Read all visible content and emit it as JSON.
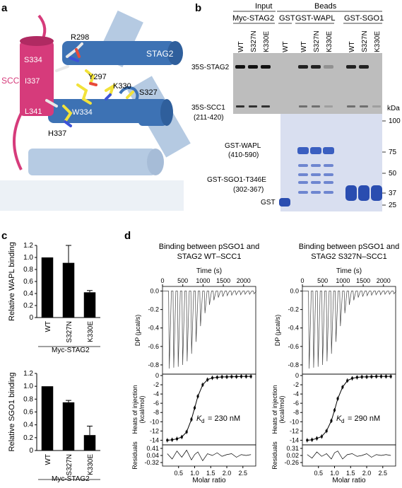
{
  "panels": {
    "a": {
      "letter": "a",
      "labels": {
        "stag2": "STAG2",
        "scc1": "SCC1",
        "r298": "R298",
        "s334": "S334",
        "i337": "I337",
        "l341": "L341",
        "y297": "Y297",
        "k330": "K330",
        "s327": "S327",
        "w334": "W334",
        "h337": "H337"
      }
    },
    "b": {
      "letter": "b",
      "header_input": "Input",
      "header_beads": "Beads",
      "groups": {
        "myc_stag2": "Myc-STAG2",
        "gst": "GST",
        "gst_wapl": "GST-WAPL",
        "gst_sgo1": "GST-SGO1"
      },
      "lanes": [
        "WT",
        "S327N",
        "K330E",
        "WT",
        "WT",
        "S327N",
        "K330E",
        "WT",
        "S327N",
        "K330E"
      ],
      "left_labels": {
        "stag2": "35S-STAG2",
        "scc1_a": "35S-SCC1",
        "scc1_b": "(211-420)",
        "wapl_a": "GST-WAPL",
        "wapl_b": "(410-590)",
        "sgo1_a": "GST-SGO1-T346E",
        "sgo1_b": "(302-367)",
        "gst": "GST"
      },
      "kda_label": "kDa",
      "kda_markers": [
        "100",
        "75",
        "50",
        "37",
        "25"
      ]
    },
    "c": {
      "letter": "c",
      "footer_label": "Myc-STAG2"
    },
    "d": {
      "letter": "d",
      "tick_labels": {
        "time": [
          "0",
          "500",
          "1000",
          "1500",
          "2000"
        ],
        "dp": [
          "0.0",
          "-0.2",
          "-0.4",
          "-0.6",
          "-0.8"
        ],
        "heat": [
          "0",
          "-2",
          "-4",
          "-6",
          "-8",
          "-10",
          "-12",
          "-14"
        ],
        "molar": [
          "0.5",
          "1.0",
          "1.5",
          "2.0",
          "2.5"
        ]
      },
      "axis_labels": {
        "time": "Time (s)",
        "dp": "DP (µcal/s)",
        "heats_a": "Heats of injection",
        "heats_b": "(kcal/mol)",
        "residuals": "Residuals",
        "molar": "Molar ratio"
      },
      "kd_prefix": "K",
      "kd_sub": "d"
    }
  },
  "chart_data": [
    {
      "type": "bar",
      "categories": [
        "WT",
        "S327N",
        "K330E"
      ],
      "values": [
        1.0,
        0.91,
        0.42
      ],
      "errors": [
        0,
        0.29,
        0.03
      ],
      "ylabel": "Relative WAPL binding",
      "ylim": [
        0,
        1.2
      ],
      "yticks": [
        "0",
        "0.2",
        "0.4",
        "0.6",
        "0.8",
        "1.0",
        "1.2"
      ]
    },
    {
      "type": "bar",
      "categories": [
        "WT",
        "S327N",
        "K330E"
      ],
      "values": [
        1.0,
        0.75,
        0.24
      ],
      "errors": [
        0,
        0.03,
        0.14
      ],
      "ylabel": "Relative SGO1 binding",
      "ylim": [
        0,
        1.2
      ],
      "yticks": [
        "0",
        "0.2",
        "0.4",
        "0.6",
        "0.8",
        "1.0",
        "1.2"
      ]
    },
    {
      "type": "line",
      "title_line1": "Binding between pSGO1 and",
      "title_line2": "STAG2 WT–SCC1",
      "kd_value": "= 230 nM",
      "peaks": [
        -0.84,
        -0.83,
        -0.82,
        -0.8,
        -0.76,
        -0.68,
        -0.55,
        -0.38,
        -0.24,
        -0.15,
        -0.1,
        -0.07,
        -0.06,
        -0.05,
        -0.045,
        -0.04,
        -0.04,
        -0.035,
        -0.035,
        -0.03
      ],
      "xlim": [
        0,
        2300
      ],
      "ylim": [
        -0.9,
        0.05
      ],
      "isotherm_x": [
        0.15,
        0.3,
        0.45,
        0.6,
        0.75,
        0.9,
        1.0,
        1.1,
        1.25,
        1.4,
        1.55,
        1.7,
        1.85,
        2.0,
        2.15,
        2.3,
        2.45,
        2.6,
        2.75
      ],
      "isotherm_y": [
        -14.0,
        -13.9,
        -13.7,
        -13.3,
        -12.2,
        -9.5,
        -7.0,
        -4.5,
        -2.0,
        -0.9,
        -0.5,
        -0.4,
        -0.3,
        -0.3,
        -0.25,
        -0.25,
        -0.2,
        -0.2,
        -0.2
      ],
      "isotherm_xlim": [
        0,
        2.9
      ],
      "isotherm_ylim": [
        -15,
        0.3
      ],
      "residual_ticks": [
        "0.41",
        "0.04",
        "-0.32"
      ],
      "residuals": [
        0.1,
        -0.2,
        0.25,
        -0.1,
        0.3,
        -0.25,
        0.05,
        0.2,
        -0.3,
        0.1,
        0.0,
        0.15,
        -0.05,
        0.05,
        0.1,
        -0.1,
        0.05,
        0.0,
        0.05
      ]
    },
    {
      "type": "line",
      "title_line1": "Binding between pSGO1 and",
      "title_line2": "STAG2 S327N–SCC1",
      "kd_value": "= 290 nM",
      "peaks": [
        -0.84,
        -0.83,
        -0.82,
        -0.8,
        -0.76,
        -0.68,
        -0.55,
        -0.38,
        -0.24,
        -0.15,
        -0.1,
        -0.07,
        -0.06,
        -0.05,
        -0.045,
        -0.04,
        -0.04,
        -0.035,
        -0.035,
        -0.03
      ],
      "xlim": [
        0,
        2300
      ],
      "ylim": [
        -0.9,
        0.05
      ],
      "isotherm_x": [
        0.15,
        0.3,
        0.45,
        0.6,
        0.75,
        0.9,
        1.0,
        1.1,
        1.25,
        1.4,
        1.55,
        1.7,
        1.85,
        2.0,
        2.15,
        2.3,
        2.45,
        2.6,
        2.75
      ],
      "isotherm_y": [
        -14.0,
        -13.9,
        -13.6,
        -13.2,
        -12.0,
        -9.8,
        -7.5,
        -5.0,
        -2.5,
        -1.1,
        -0.6,
        -0.4,
        -0.3,
        -0.3,
        -0.25,
        -0.2,
        -0.2,
        -0.2,
        -0.2
      ],
      "isotherm_xlim": [
        0,
        2.9
      ],
      "isotherm_ylim": [
        -15,
        0.3
      ],
      "residual_ticks": [
        "0.31",
        "0.02",
        "-0.26"
      ],
      "residuals": [
        0.05,
        -0.15,
        0.2,
        -0.05,
        0.1,
        -0.2,
        0.15,
        0.25,
        -0.2,
        0.05,
        0.1,
        -0.05,
        0.0,
        0.1,
        -0.1,
        0.05,
        0.0,
        0.05,
        0.0
      ]
    }
  ]
}
